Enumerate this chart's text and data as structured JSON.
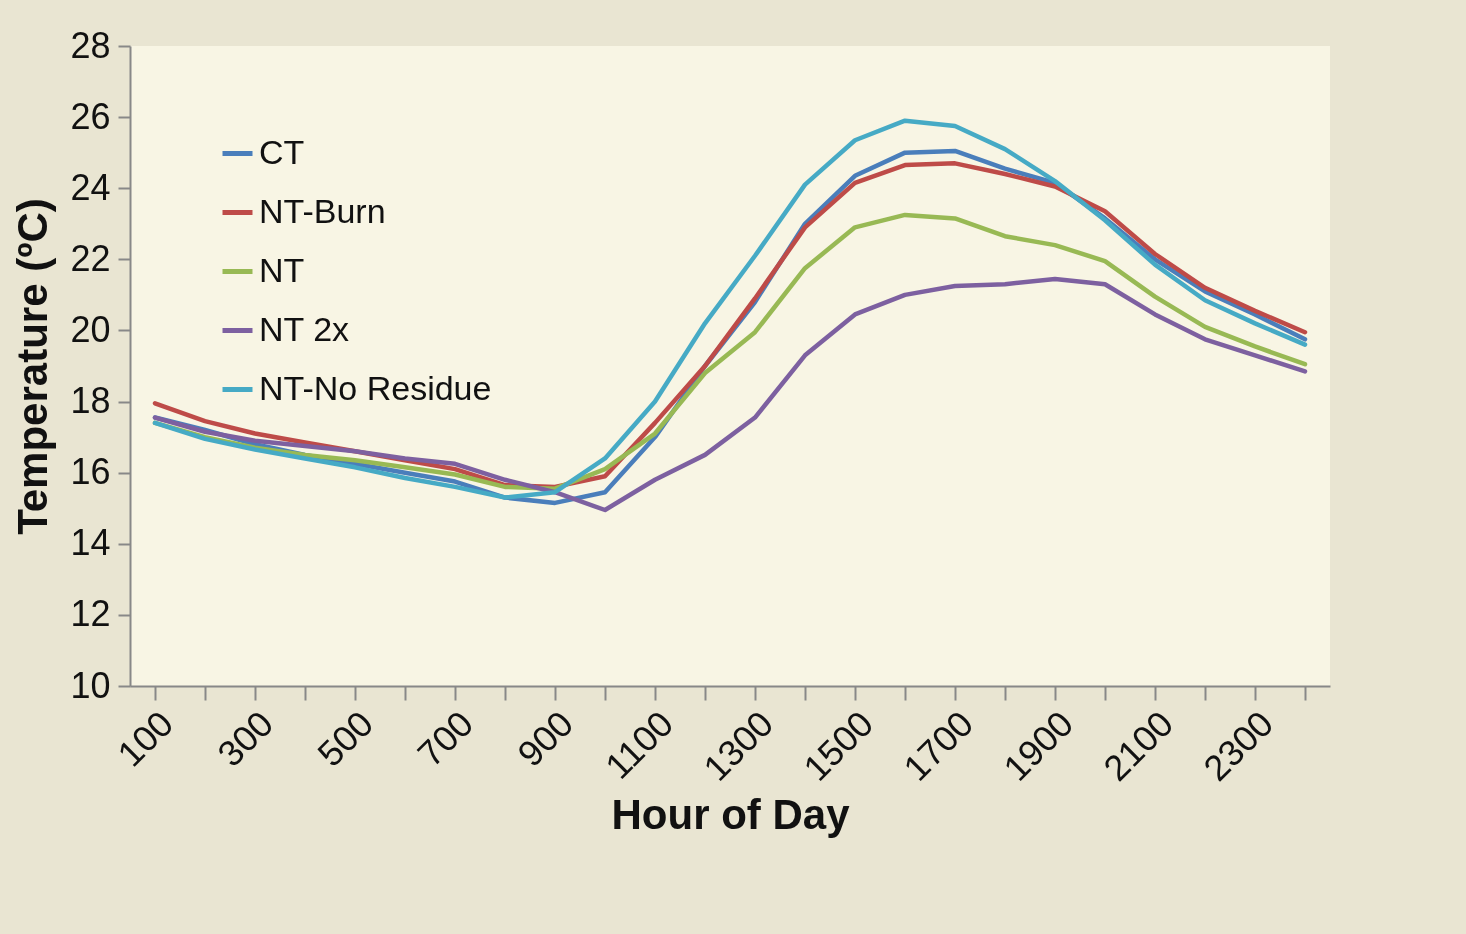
{
  "chart_data": {
    "type": "line",
    "xlabel": "Hour of Day",
    "ylabel": "Temperature (ºC)",
    "categories": [
      "100",
      null,
      "300",
      null,
      "500",
      null,
      "700",
      null,
      "900",
      null,
      "1100",
      null,
      "1300",
      null,
      "1500",
      null,
      "1700",
      null,
      "1900",
      null,
      "2100",
      null,
      "2300",
      null
    ],
    "ylim": [
      10,
      28
    ],
    "yticks": [
      10,
      12,
      14,
      16,
      18,
      20,
      22,
      24,
      26,
      28
    ],
    "grid": false,
    "legend": "top left",
    "marker": "none",
    "line_style": "solid",
    "series": [
      {
        "name": "CT",
        "color": "#4a7ebb",
        "values": [
          17.55,
          17.2,
          16.8,
          16.5,
          16.25,
          16.0,
          15.75,
          15.3,
          15.15,
          15.45,
          17.0,
          19.0,
          20.8,
          23.0,
          24.35,
          25.0,
          25.05,
          24.55,
          24.15,
          23.15,
          22.0,
          21.1,
          20.45,
          19.75
        ]
      },
      {
        "name": "NT-Burn",
        "color": "#be4b48",
        "values": [
          17.95,
          17.45,
          17.1,
          16.85,
          16.6,
          16.35,
          16.1,
          15.65,
          15.6,
          15.9,
          17.4,
          19.0,
          20.9,
          22.9,
          24.15,
          24.65,
          24.7,
          24.4,
          24.05,
          23.35,
          22.15,
          21.2,
          20.55,
          19.95
        ]
      },
      {
        "name": "NT",
        "color": "#98b954",
        "values": [
          17.4,
          17.0,
          16.7,
          16.5,
          16.35,
          16.15,
          15.95,
          15.6,
          15.55,
          16.1,
          17.1,
          18.8,
          19.95,
          21.75,
          22.9,
          23.25,
          23.15,
          22.65,
          22.4,
          21.95,
          20.95,
          20.1,
          19.55,
          19.05
        ]
      },
      {
        "name": "NT 2x",
        "color": "#7d60a0",
        "values": [
          17.55,
          17.15,
          16.9,
          16.75,
          16.6,
          16.4,
          16.25,
          15.8,
          15.45,
          14.95,
          15.8,
          16.5,
          17.55,
          19.3,
          20.45,
          21.0,
          21.25,
          21.3,
          21.45,
          21.3,
          20.45,
          19.75,
          19.3,
          18.85
        ]
      },
      {
        "name": "NT-No Residue",
        "color": "#46aac5",
        "values": [
          17.4,
          16.95,
          16.65,
          16.4,
          16.15,
          15.85,
          15.6,
          15.3,
          15.45,
          16.4,
          18.0,
          20.2,
          22.1,
          24.1,
          25.35,
          25.9,
          25.75,
          25.1,
          24.2,
          23.1,
          21.85,
          20.85,
          20.2,
          19.6
        ]
      }
    ]
  }
}
